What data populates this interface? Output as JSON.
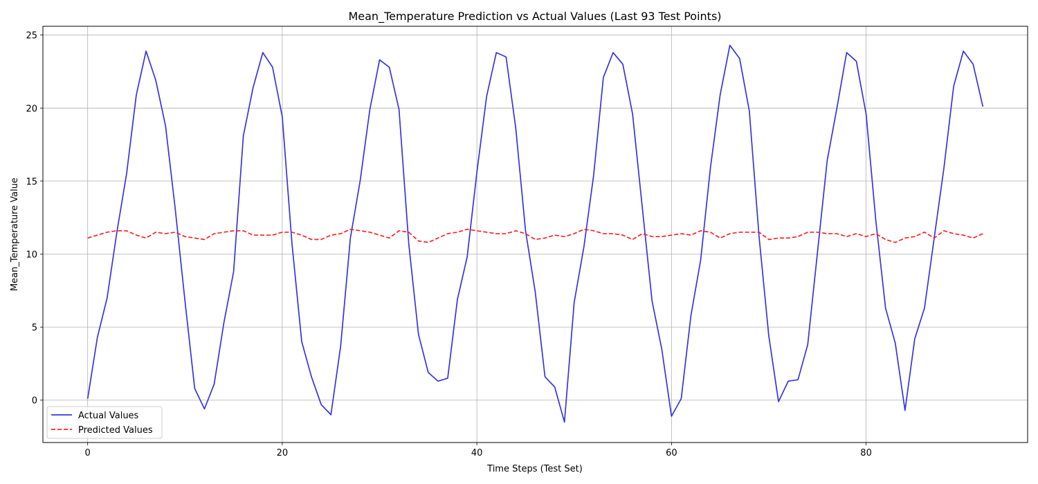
{
  "chart_data": {
    "type": "line",
    "title": "Mean_Temperature Prediction vs Actual Values (Last 93 Test Points)",
    "xlabel": "Time Steps (Test Set)",
    "ylabel": "Mean_Temperature Value",
    "xlim": [
      -4.6,
      96.6
    ],
    "ylim": [
      -2.9,
      25.6
    ],
    "xticks": [
      0,
      20,
      40,
      60,
      80
    ],
    "yticks": [
      0,
      5,
      10,
      15,
      20,
      25
    ],
    "grid": true,
    "legend_position": "lower-left",
    "x": [
      0,
      1,
      2,
      3,
      4,
      5,
      6,
      7,
      8,
      9,
      10,
      11,
      12,
      13,
      14,
      15,
      16,
      17,
      18,
      19,
      20,
      21,
      22,
      23,
      24,
      25,
      26,
      27,
      28,
      29,
      30,
      31,
      32,
      33,
      34,
      35,
      36,
      37,
      38,
      39,
      40,
      41,
      42,
      43,
      44,
      45,
      46,
      47,
      48,
      49,
      50,
      51,
      52,
      53,
      54,
      55,
      56,
      57,
      58,
      59,
      60,
      61,
      62,
      63,
      64,
      65,
      66,
      67,
      68,
      69,
      70,
      71,
      72,
      73,
      74,
      75,
      76,
      77,
      78,
      79,
      80,
      81,
      82,
      83,
      84,
      85,
      86,
      87,
      88,
      89,
      90,
      91,
      92
    ],
    "series": [
      {
        "name": "Actual Values",
        "color": "#3434e0",
        "style": "solid",
        "values": [
          0.1,
          4.3,
          7.0,
          11.5,
          15.5,
          20.9,
          23.9,
          21.9,
          18.8,
          13.1,
          6.8,
          0.8,
          -0.6,
          1.1,
          5.3,
          8.8,
          18.1,
          21.4,
          23.8,
          22.8,
          19.4,
          10.7,
          4.0,
          1.6,
          -0.3,
          -1.0,
          3.7,
          11.1,
          15.0,
          19.9,
          23.3,
          22.8,
          19.9,
          10.7,
          4.5,
          1.9,
          1.3,
          1.5,
          6.9,
          9.8,
          15.6,
          20.8,
          23.8,
          23.5,
          18.6,
          11.6,
          7.4,
          1.6,
          0.9,
          -1.5,
          6.7,
          10.5,
          15.4,
          22.1,
          23.8,
          23.0,
          19.6,
          13.2,
          6.8,
          3.5,
          -1.1,
          0.1,
          5.8,
          9.6,
          15.9,
          20.9,
          24.3,
          23.4,
          19.8,
          11.2,
          4.4,
          -0.1,
          1.3,
          1.4,
          3.8,
          10.1,
          16.4,
          20.0,
          23.8,
          23.2,
          19.6,
          12.3,
          6.3,
          3.9,
          -0.7,
          4.2,
          6.3,
          11.1,
          15.9,
          21.5,
          23.9,
          23.0,
          20.1
        ]
      },
      {
        "name": "Predicted Values",
        "color": "#ff2020",
        "style": "dashed",
        "values": [
          11.1,
          11.3,
          11.5,
          11.6,
          11.6,
          11.3,
          11.1,
          11.5,
          11.4,
          11.5,
          11.2,
          11.1,
          11.0,
          11.4,
          11.5,
          11.6,
          11.6,
          11.3,
          11.3,
          11.3,
          11.5,
          11.5,
          11.3,
          11.0,
          11.0,
          11.3,
          11.4,
          11.7,
          11.6,
          11.5,
          11.3,
          11.1,
          11.6,
          11.5,
          10.9,
          10.8,
          11.1,
          11.4,
          11.5,
          11.7,
          11.6,
          11.5,
          11.4,
          11.4,
          11.6,
          11.4,
          11.0,
          11.1,
          11.3,
          11.2,
          11.4,
          11.7,
          11.6,
          11.4,
          11.4,
          11.3,
          11.0,
          11.4,
          11.2,
          11.2,
          11.3,
          11.4,
          11.3,
          11.6,
          11.5,
          11.1,
          11.4,
          11.5,
          11.5,
          11.5,
          11.0,
          11.1,
          11.1,
          11.2,
          11.5,
          11.5,
          11.4,
          11.4,
          11.2,
          11.4,
          11.2,
          11.4,
          11.0,
          10.8,
          11.1,
          11.2,
          11.5,
          11.1,
          11.6,
          11.4,
          11.3,
          11.1,
          11.4
        ]
      }
    ]
  }
}
